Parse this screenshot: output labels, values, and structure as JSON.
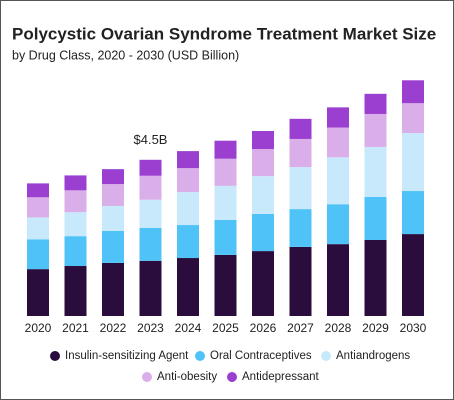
{
  "chart_data": {
    "type": "stacked_bar",
    "title": "Polycystic Ovarian Syndrome Treatment Market Size",
    "subtitle": "by Drug Class, 2020 - 2030 (USD Billion)",
    "categories": [
      "2020",
      "2021",
      "2022",
      "2023",
      "2024",
      "2025",
      "2026",
      "2027",
      "2028",
      "2029",
      "2030"
    ],
    "series": [
      {
        "name": "Insulin-sensitizing Agent",
        "color": "#2b0d3d",
        "values": [
          1.35,
          1.44,
          1.53,
          1.59,
          1.67,
          1.76,
          1.87,
          1.99,
          2.07,
          2.19,
          2.36
        ]
      },
      {
        "name": "Oral Contraceptives",
        "color": "#4fc3f7",
        "values": [
          0.86,
          0.86,
          0.92,
          0.95,
          0.95,
          1.01,
          1.07,
          1.09,
          1.15,
          1.24,
          1.24
        ]
      },
      {
        "name": "Antiandrogens",
        "color": "#c8e8fb",
        "values": [
          0.63,
          0.69,
          0.72,
          0.81,
          0.95,
          0.98,
          1.09,
          1.21,
          1.35,
          1.44,
          1.67
        ]
      },
      {
        "name": "Anti-obesity",
        "color": "#d9aee9",
        "values": [
          0.58,
          0.63,
          0.63,
          0.69,
          0.69,
          0.78,
          0.78,
          0.81,
          0.86,
          0.95,
          0.86
        ]
      },
      {
        "name": "Antidepressant",
        "color": "#9b3fd0",
        "values": [
          0.4,
          0.43,
          0.43,
          0.46,
          0.49,
          0.52,
          0.52,
          0.58,
          0.58,
          0.58,
          0.66
        ]
      }
    ],
    "annotations": [
      {
        "text": "$4.5B",
        "x": "2023"
      }
    ],
    "ylim": [
      0,
      7
    ]
  }
}
